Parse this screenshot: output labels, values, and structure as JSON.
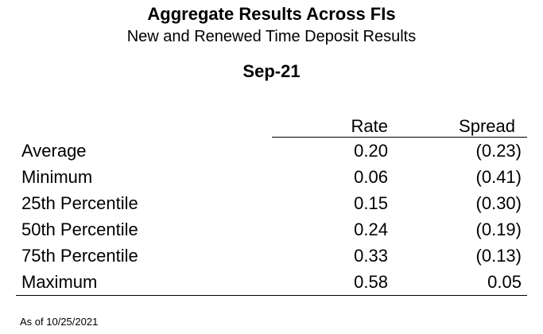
{
  "header": {
    "title": "Aggregate Results Across FIs",
    "subtitle": "New and Renewed Time Deposit Results",
    "period": "Sep-21"
  },
  "table": {
    "columns": [
      "Rate",
      "Spread"
    ],
    "rows": [
      {
        "label": "Average",
        "rate": "0.20",
        "spread": "(0.23)"
      },
      {
        "label": "Minimum",
        "rate": "0.06",
        "spread": "(0.41)"
      },
      {
        "label": "25th Percentile",
        "rate": "0.15",
        "spread": "(0.30)"
      },
      {
        "label": "50th Percentile",
        "rate": "0.24",
        "spread": "(0.19)"
      },
      {
        "label": "75th Percentile",
        "rate": "0.33",
        "spread": "(0.13)"
      },
      {
        "label": "Maximum",
        "rate": "0.58",
        "spread": "0.05"
      }
    ]
  },
  "footer": {
    "note": "As of 10/25/2021"
  }
}
